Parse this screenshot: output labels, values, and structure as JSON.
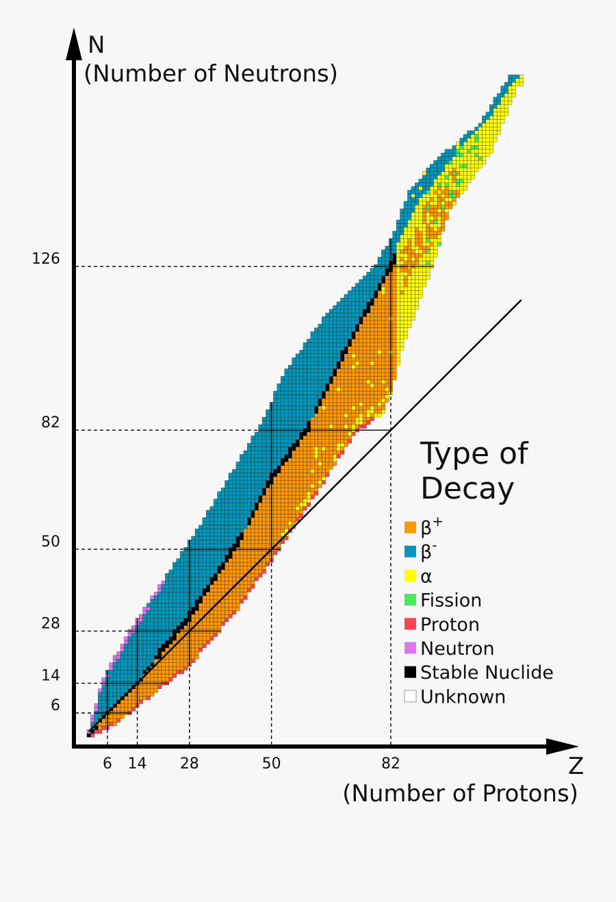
{
  "chart_data": {
    "type": "heatmap",
    "title": "",
    "y_axis": {
      "symbol": "N",
      "label": "(Number of Neutrons)",
      "ticks": [
        6,
        14,
        28,
        50,
        82,
        126
      ]
    },
    "x_axis": {
      "symbol": "Z",
      "label": "(Number of Protons)",
      "ticks": [
        6,
        14,
        28,
        50,
        82
      ]
    },
    "xlim": [
      0,
      130
    ],
    "ylim": [
      0,
      190
    ],
    "magic_numbers_n": [
      6,
      14,
      28,
      50,
      82,
      126
    ],
    "magic_numbers_z": [
      6,
      14,
      28,
      50,
      82
    ],
    "reference_line_n_equals_z": [
      1,
      117
    ],
    "region": {
      "min_n_by_z": [
        [
          1,
          0
        ],
        [
          8,
          3
        ],
        [
          14,
          8
        ],
        [
          28,
          19
        ],
        [
          40,
          33
        ],
        [
          52,
          50
        ],
        [
          65,
          70
        ],
        [
          73,
          82
        ],
        [
          80,
          87
        ],
        [
          82,
          92
        ],
        [
          85,
          104
        ],
        [
          93,
          126
        ],
        [
          98,
          142
        ],
        [
          109,
          157
        ],
        [
          116,
          175
        ],
        [
          117,
          175
        ]
      ],
      "max_n_by_z": [
        [
          1,
          1
        ],
        [
          5,
          15
        ],
        [
          12,
          28
        ],
        [
          21,
          41
        ],
        [
          32,
          58
        ],
        [
          47,
          83
        ],
        [
          54,
          98
        ],
        [
          65,
          113
        ],
        [
          78,
          126
        ],
        [
          83,
          135
        ],
        [
          87,
          146
        ],
        [
          95,
          155
        ],
        [
          106,
          164
        ],
        [
          114,
          177
        ],
        [
          117,
          177
        ]
      ],
      "stable_n_by_z": [
        [
          1,
          0
        ],
        [
          6,
          6
        ],
        [
          14,
          14
        ],
        [
          20,
          22
        ],
        [
          28,
          32
        ],
        [
          41,
          52
        ],
        [
          50,
          69
        ],
        [
          60,
          83
        ],
        [
          69,
          102
        ],
        [
          76,
          115
        ],
        [
          82,
          126
        ],
        [
          90,
          142
        ],
        [
          100,
          155
        ],
        [
          110,
          166
        ],
        [
          117,
          176
        ]
      ],
      "last_stable_z": 83
    },
    "legend": {
      "title_line1": "Type of",
      "title_line2": "Decay",
      "placement": "right",
      "items": [
        {
          "key": "beta_plus",
          "label": "β",
          "sup": "+",
          "color": "#ff9900"
        },
        {
          "key": "beta_minus",
          "label": "β",
          "sup": "-",
          "color": "#0099bb"
        },
        {
          "key": "alpha",
          "label": "α",
          "sup": "",
          "color": "#ffff00"
        },
        {
          "key": "fission",
          "label": "Fission",
          "sup": "",
          "color": "#44ee55"
        },
        {
          "key": "proton",
          "label": "Proton",
          "sup": "",
          "color": "#ff4455"
        },
        {
          "key": "neutron",
          "label": "Neutron",
          "sup": "",
          "color": "#dd77ee"
        },
        {
          "key": "stable",
          "label": "Stable Nuclide",
          "sup": "",
          "color": "#000000"
        },
        {
          "key": "unknown",
          "label": "Unknown",
          "sup": "",
          "color": "#ffffff"
        }
      ]
    }
  }
}
